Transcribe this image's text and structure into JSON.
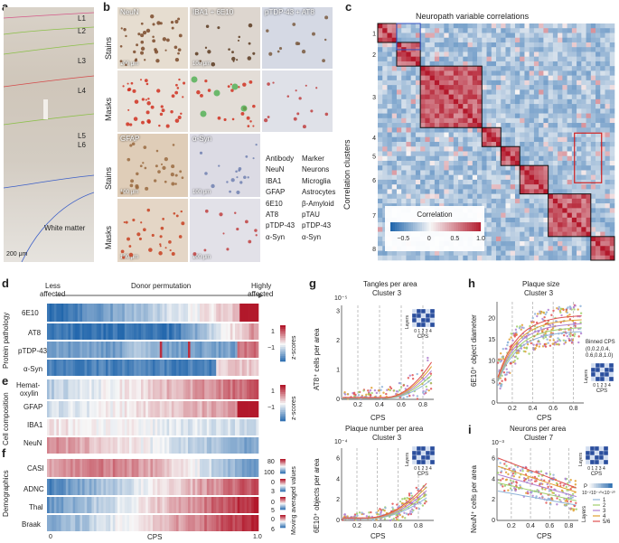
{
  "panels": {
    "a": {
      "label": "a",
      "layers": [
        "L1",
        "L2",
        "L3",
        "L4",
        "L5",
        "L6"
      ],
      "white_matter": "White matter",
      "scale": "200 μm"
    },
    "b": {
      "label": "b",
      "stain_titles": [
        "NeuN",
        "IBA1 + 6E10",
        "pTDP-43 + AT8"
      ],
      "row_stains": "Stains",
      "row_masks": "Masks",
      "stain_titles2": [
        "GFAP",
        "α-Syn"
      ],
      "scale_top": "100 μm",
      "scale_bottom": "100 μm",
      "table_header": [
        "Antibody",
        "Marker"
      ],
      "table_rows": [
        [
          "NeuN",
          "Neurons"
        ],
        [
          "IBA1",
          "Microglia"
        ],
        [
          "GFAP",
          "Astrocytes"
        ],
        [
          "6E10",
          "β-Amyloid"
        ],
        [
          "AT8",
          "pTAU"
        ],
        [
          "pTDP-43",
          "pTDP-43"
        ],
        [
          "α-Syn",
          "α-Syn"
        ]
      ]
    },
    "c": {
      "label": "c",
      "title": "Neuropath variable correlations",
      "ylabel": "Correlation clusters",
      "clusters": [
        "1",
        "2",
        "3",
        "4",
        "5",
        "6",
        "7",
        "8"
      ],
      "legend_title": "Correlation",
      "legend_ticks": [
        "−0.5",
        "0",
        "0.5",
        "1.0"
      ]
    },
    "d": {
      "label": "d",
      "less": "Less\naffected",
      "less1": "Less",
      "less2": "affected",
      "donor": "Donor permutation",
      "high1": "Highly",
      "high2": "affected",
      "group": "Protein pathology",
      "rows": [
        "6E10",
        "AT8",
        "pTDP-43",
        "α-Syn"
      ],
      "zlabel": "z-scores",
      "zticks": [
        "1",
        "−1"
      ]
    },
    "e": {
      "label": "e",
      "group": "Cell composition",
      "rows1": "Hemat-",
      "rows2": "oxylin",
      "rows": [
        "GFAP",
        "IBA1",
        "NeuN"
      ],
      "zlabel": "z-scores",
      "zticks": [
        "1",
        "−1"
      ]
    },
    "f": {
      "label": "f",
      "group": "Demographics",
      "rows": [
        "CASI",
        "ADNC",
        "Thal",
        "Braak"
      ],
      "side": "Moving averaged values",
      "ticks": [
        [
          "80",
          "100"
        ],
        [
          "0",
          "3"
        ],
        [
          "0",
          "5"
        ],
        [
          "0",
          "6"
        ]
      ],
      "x0": "0",
      "xlabel": "CPS",
      "x1": "1.0"
    },
    "g": {
      "label": "g",
      "title1": "Tangles per area",
      "title2": "Cluster 3",
      "exp": "10⁻⁵",
      "ylabel": "AT8⁺ cells per area",
      "xlabel": "CPS",
      "xticks": [
        "0.2",
        "0.4",
        "0.6",
        "0.8"
      ],
      "yticks": [
        "0",
        "1",
        "2",
        "3"
      ],
      "inset_label": "Layers",
      "inset_x": "0 1 2 3 4",
      "inset_xl": "CPS",
      "title3": "Plaque number per area",
      "title4": "Cluster 3",
      "exp2": "10⁻⁴",
      "ylabel2": "6E10⁺ objects per area",
      "yticks2": [
        "0",
        "2",
        "4",
        "6"
      ]
    },
    "h": {
      "label": "h",
      "title1": "Plaque size",
      "title2": "Cluster 3",
      "ylabel": "6E10⁺ object diameter",
      "xlabel": "CPS",
      "xticks": [
        "0.2",
        "0.4",
        "0.6",
        "0.8"
      ],
      "yticks": [
        "0",
        "5",
        "10",
        "15",
        "20"
      ],
      "binned": "Binned CPS",
      "bins1": "(0,0.2,0.4,",
      "bins2": "0.6,0.8,1.0)",
      "inset_label": "Layers",
      "inset_x": "0 1 2 3 4",
      "inset_xl": "CPS"
    },
    "i": {
      "label": "i",
      "title1": "Neurons per area",
      "title2": "Cluster 7",
      "exp": "10⁻³",
      "ylabel": "NeuN⁺ cells per area",
      "xlabel": "CPS",
      "xticks": [
        "0.2",
        "0.4",
        "0.6",
        "0.8"
      ],
      "yticks": [
        "0",
        "2",
        "4",
        "6"
      ],
      "inset_label": "Layers",
      "inset_x": "0 1 2 3 4",
      "inset_xl": "CPS",
      "p_label": "P",
      "p_ticks": [
        "10⁻²",
        "10⁻¹⁰",
        "<10⁻²⁰"
      ],
      "legend": [
        "1",
        "2",
        "3",
        "4",
        "5/6"
      ],
      "legend_title": "Layers"
    }
  },
  "colors": {
    "red": "#b2182b",
    "blue": "#2166ac",
    "white": "#f7f7f7",
    "layers": [
      "#8fb3d9",
      "#9fcf6a",
      "#b07fd0",
      "#e0a030",
      "#e05050"
    ]
  }
}
